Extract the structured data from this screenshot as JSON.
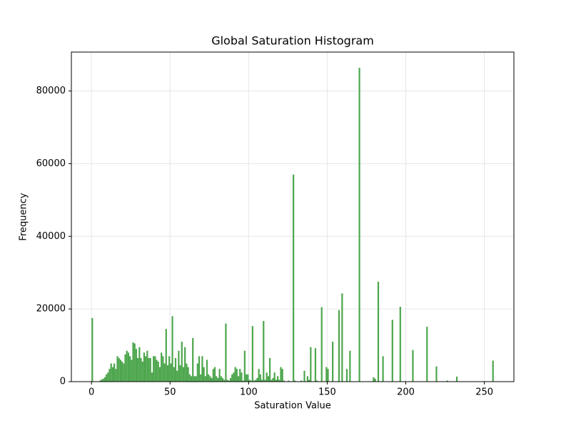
{
  "chart_data": {
    "type": "histogram",
    "title": "Global Saturation Histogram",
    "x_label": "Saturation Value",
    "y_label": "Frequency",
    "color": "#4da64d",
    "grid": true,
    "bins": [
      0,
      1,
      2,
      3,
      4,
      5,
      6,
      7,
      8,
      9,
      10,
      11,
      12,
      13,
      14,
      15,
      16,
      17,
      18,
      19,
      20,
      21,
      22,
      23,
      24,
      25,
      26,
      27,
      28,
      29,
      30,
      31,
      32,
      33,
      34,
      35,
      36,
      37,
      38,
      39,
      40,
      41,
      42,
      43,
      44,
      45,
      46,
      47,
      48,
      49,
      50,
      51,
      52,
      53,
      54,
      55,
      56,
      57,
      58,
      59,
      60,
      61,
      62,
      63,
      64,
      65,
      66,
      67,
      68,
      69,
      70,
      71,
      72,
      73,
      74,
      75,
      76,
      77,
      78,
      79,
      80,
      81,
      82,
      83,
      84,
      85,
      86,
      87,
      88,
      89,
      90,
      91,
      92,
      93,
      94,
      95,
      96,
      97,
      98,
      99,
      100,
      101,
      102,
      103,
      104,
      105,
      106,
      107,
      108,
      109,
      110,
      111,
      112,
      113,
      114,
      115,
      116,
      117,
      118,
      119,
      120,
      121,
      122,
      123,
      124,
      125,
      126,
      127,
      128,
      129,
      130,
      131,
      132,
      133,
      134,
      135,
      136,
      137,
      138,
      139,
      140,
      141,
      142,
      143,
      144,
      145,
      146,
      147,
      148,
      149,
      150,
      151,
      152,
      153,
      154,
      155,
      156,
      157,
      158,
      159,
      160,
      161,
      162,
      163,
      164,
      165,
      166,
      167,
      168,
      169,
      170,
      171,
      172,
      173,
      174,
      175,
      176,
      177,
      178,
      179,
      180,
      181,
      182,
      183,
      184,
      185,
      186,
      187,
      188,
      189,
      190,
      191,
      192,
      193,
      194,
      195,
      196,
      197,
      198,
      199,
      200,
      201,
      202,
      203,
      204,
      205,
      206,
      207,
      208,
      209,
      210,
      211,
      212,
      213,
      214,
      215,
      216,
      217,
      218,
      219,
      220,
      221,
      222,
      223,
      224,
      225,
      226,
      227,
      228,
      229,
      230,
      231,
      232,
      233,
      234,
      235,
      236,
      237,
      238,
      239,
      240,
      241,
      242,
      243,
      244,
      245,
      246,
      247,
      248,
      249,
      250,
      251,
      252,
      253,
      254,
      255,
      256
    ],
    "counts": [
      17500,
      0,
      0,
      0,
      0,
      300,
      600,
      800,
      1200,
      2000,
      2500,
      3500,
      5000,
      4000,
      5000,
      3500,
      7000,
      6500,
      6000,
      5500,
      5000,
      7500,
      8500,
      8000,
      7000,
      6000,
      10800,
      10500,
      9000,
      6500,
      9500,
      6500,
      5500,
      8000,
      7000,
      8500,
      6500,
      6500,
      2500,
      7000,
      7000,
      6000,
      5500,
      4000,
      8000,
      7000,
      5000,
      14500,
      4500,
      7000,
      5000,
      18000,
      4000,
      6500,
      3000,
      8500,
      4500,
      11000,
      4000,
      9500,
      5000,
      4000,
      2000,
      1500,
      12000,
      1500,
      1500,
      5000,
      7000,
      2000,
      7000,
      4000,
      1500,
      6000,
      2000,
      1500,
      1000,
      3500,
      4000,
      1500,
      1000,
      3500,
      1500,
      1000,
      500,
      16000,
      500,
      300,
      1000,
      2000,
      2500,
      4000,
      3500,
      1500,
      3500,
      2500,
      300,
      8500,
      2000,
      2000,
      500,
      300,
      15300,
      300,
      500,
      1000,
      3500,
      2000,
      500,
      16700,
      500,
      2500,
      1500,
      6500,
      500,
      1000,
      2500,
      500,
      1500,
      500,
      4000,
      3500,
      300,
      0,
      0,
      300,
      0,
      0,
      57000,
      300,
      0,
      0,
      0,
      300,
      0,
      3000,
      0,
      1500,
      500,
      9500,
      0,
      0,
      9200,
      300,
      0,
      0,
      20500,
      0,
      0,
      4000,
      3500,
      0,
      0,
      11000,
      0,
      0,
      0,
      19700,
      0,
      24300,
      0,
      0,
      3500,
      0,
      8500,
      0,
      0,
      0,
      0,
      0,
      86400,
      0,
      0,
      0,
      0,
      0,
      0,
      0,
      0,
      1200,
      800,
      0,
      27500,
      0,
      0,
      7000,
      0,
      0,
      0,
      0,
      0,
      17000,
      0,
      0,
      0,
      0,
      20600,
      0,
      0,
      0,
      0,
      0,
      0,
      0,
      8700,
      0,
      0,
      0,
      0,
      0,
      0,
      0,
      0,
      15100,
      0,
      0,
      0,
      0,
      0,
      4200,
      0,
      0,
      0,
      0,
      0,
      0,
      300,
      0,
      0,
      0,
      0,
      0,
      1400,
      0,
      0,
      0,
      0,
      0,
      0,
      0,
      0,
      0,
      0,
      0,
      0,
      0,
      0,
      0,
      0,
      0,
      0,
      0,
      0,
      0,
      0,
      5800
    ],
    "xlim": [
      -12.8,
      268.8
    ],
    "xticks": [
      0,
      50,
      100,
      150,
      200,
      250
    ],
    "ylim": [
      0,
      90720
    ],
    "yticks": [
      0,
      20000,
      40000,
      60000,
      80000
    ]
  }
}
